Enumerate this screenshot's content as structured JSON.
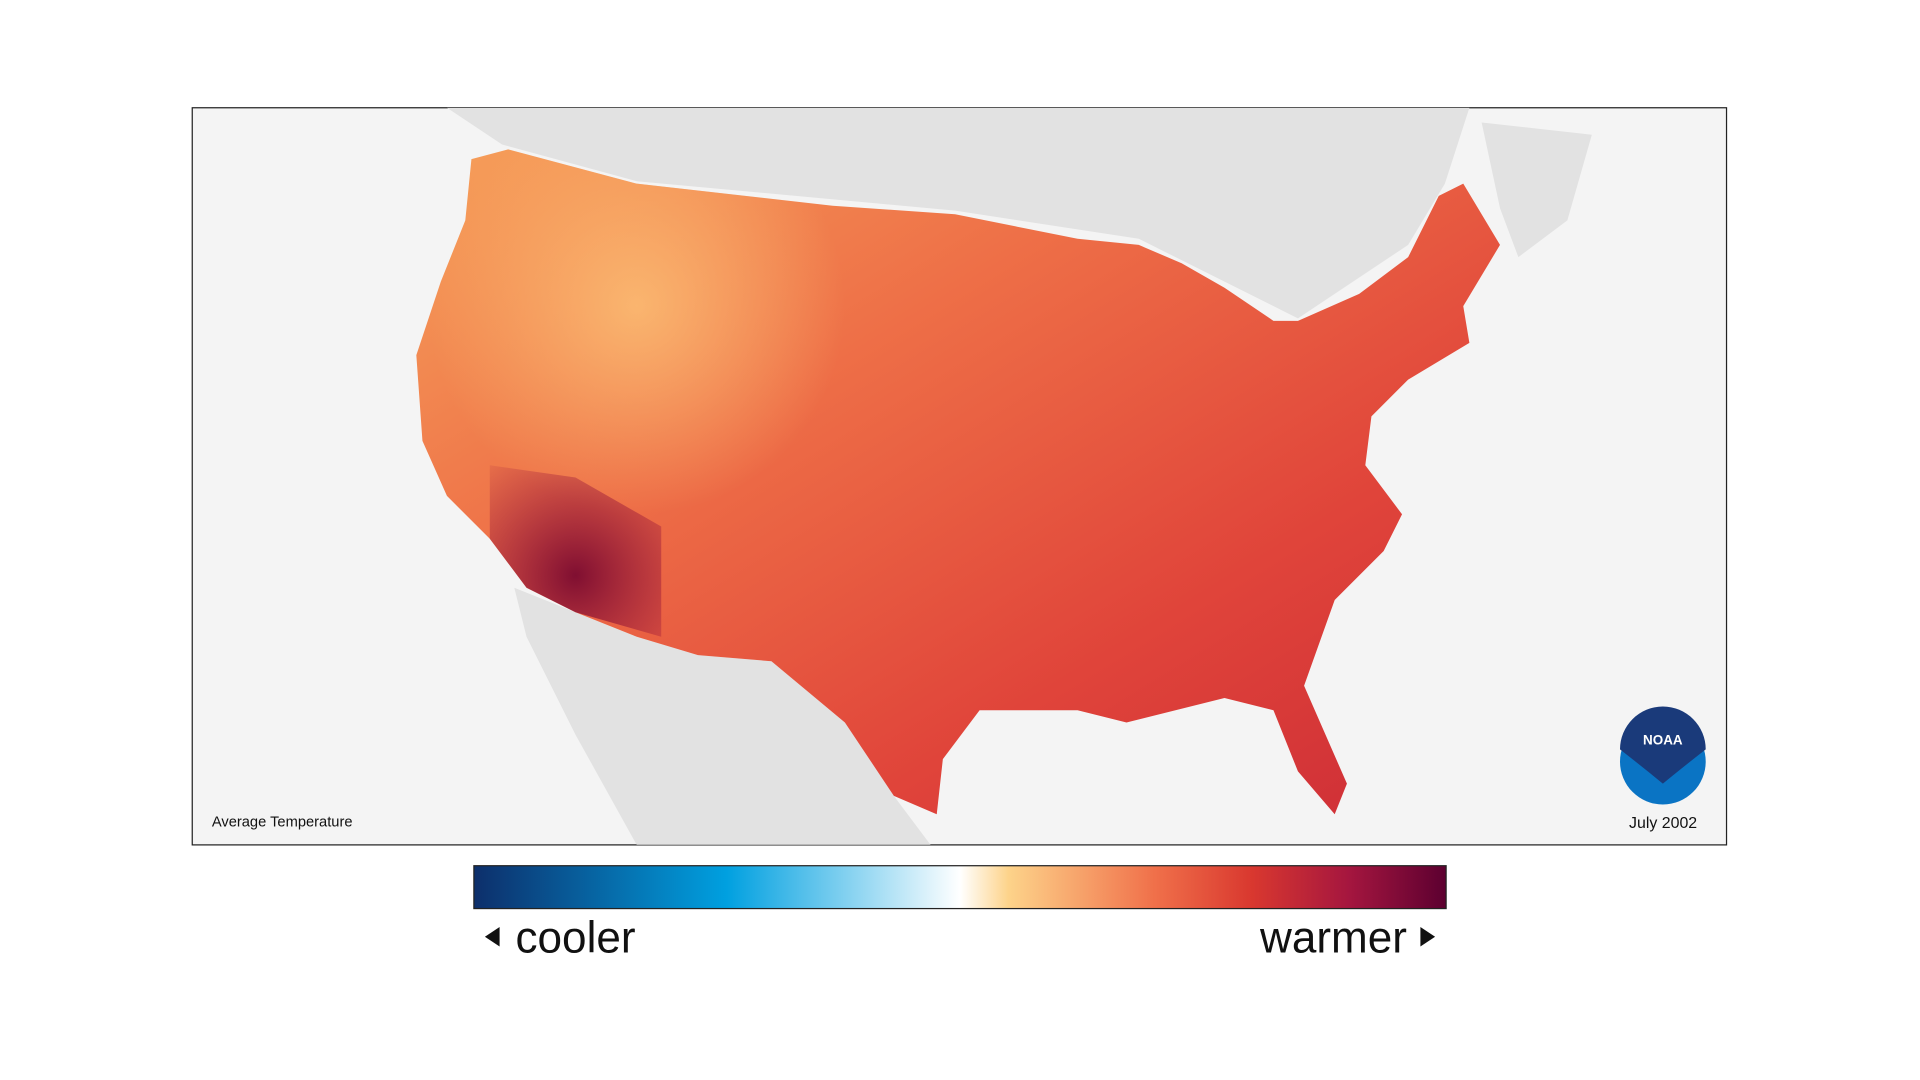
{
  "map": {
    "caption": "Average Temperature",
    "date": "July 2002"
  },
  "legend": {
    "low_label": "cooler",
    "high_label": "warmer"
  },
  "logo": {
    "text": "NOAA"
  }
}
